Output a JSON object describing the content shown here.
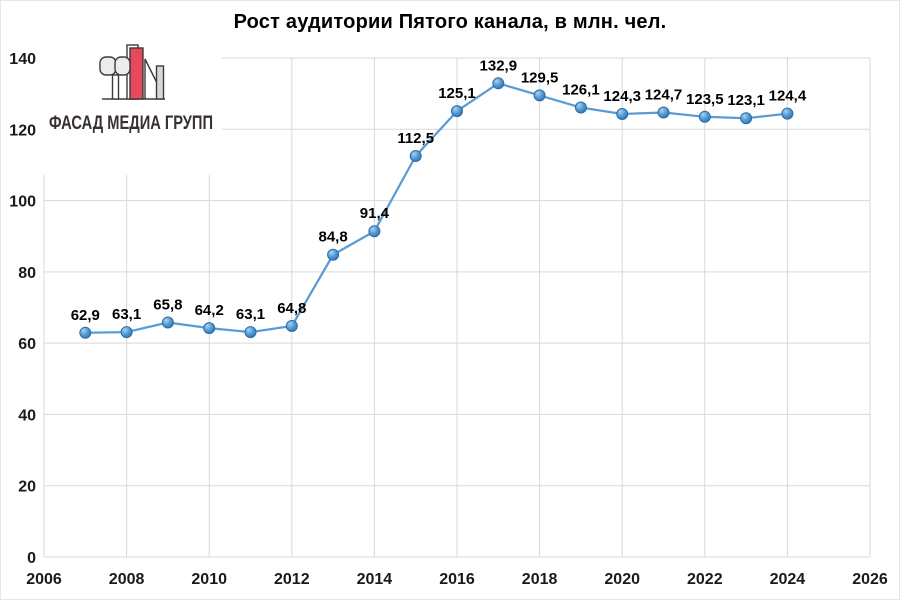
{
  "page": {
    "background": "#FFFFFF",
    "border_color": "#E6E6E6"
  },
  "logo": {
    "text": "ФАСАД МЕДИА ГРУПП",
    "colors": {
      "red": "#E5495B",
      "pill_fill": "#ECECEC",
      "bar_fill": "#D9D9D9",
      "white_fill": "#FFFFFF",
      "outline": "#403B3A",
      "text": "#37312F"
    }
  },
  "chart_data": {
    "type": "line",
    "title": "Рост аудитории Пятого канала, в млн. чел.",
    "x": [
      2007,
      2008,
      2009,
      2010,
      2011,
      2012,
      2013,
      2014,
      2015,
      2016,
      2017,
      2018,
      2019,
      2020,
      2021,
      2022,
      2023,
      2024
    ],
    "values": [
      62.9,
      63.1,
      65.8,
      64.2,
      63.1,
      64.8,
      84.8,
      91.4,
      112.5,
      125.1,
      132.9,
      129.5,
      126.1,
      124.3,
      124.7,
      123.5,
      123.1,
      124.4
    ],
    "point_labels": [
      "62,9",
      "63,1",
      "65,8",
      "64,2",
      "63,1",
      "64,8",
      "84,8",
      "91,4",
      "112,5",
      "125,1",
      "132,9",
      "129,5",
      "126,1",
      "124,3",
      "124,7",
      "123,5",
      "123,1",
      "124,4"
    ],
    "xlabel": "",
    "ylabel": "",
    "xlim": [
      2006,
      2026
    ],
    "ylim": [
      0,
      140
    ],
    "x_ticks": [
      2006,
      2008,
      2010,
      2012,
      2014,
      2016,
      2018,
      2020,
      2022,
      2024,
      2026
    ],
    "y_ticks": [
      0,
      20,
      40,
      60,
      80,
      100,
      120,
      140
    ],
    "grid": true,
    "legend": "none",
    "line_color": "#5B9BD5",
    "marker_stroke": "#2E6DA4",
    "marker_gradient": [
      "#A9D2EF",
      "#5C9FD8",
      "#3B80BE",
      "#2E6DA8"
    ],
    "gridline_color": "#D9D9D9",
    "axis_text_color": "#1A1A1A",
    "label_text_color": "#000000"
  }
}
